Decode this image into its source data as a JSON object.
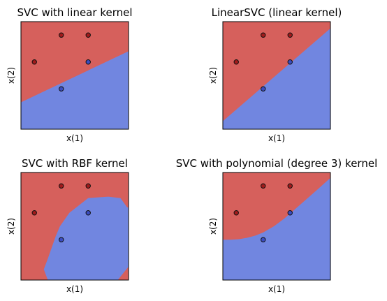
{
  "colors": {
    "class0": "#d6605c",
    "class1": "#7186e0",
    "point_stroke": "#111111"
  },
  "chart_data": [
    {
      "type": "scatter",
      "title": "SVC with linear kernel",
      "xlabel": "x(1)",
      "ylabel": "x(2)",
      "xlim": [
        -0.5,
        3.5
      ],
      "ylim": [
        -0.5,
        3.5
      ],
      "points": [
        {
          "x": 1,
          "y": 3,
          "class": 0
        },
        {
          "x": 2,
          "y": 3,
          "class": 0
        },
        {
          "x": 0,
          "y": 2,
          "class": 0
        },
        {
          "x": 2,
          "y": 2,
          "class": 1
        },
        {
          "x": 1,
          "y": 1,
          "class": 1
        }
      ],
      "boundary": {
        "kind": "line",
        "x": [
          -0.5,
          3.5
        ],
        "y": [
          0.5,
          2.4
        ]
      }
    },
    {
      "type": "scatter",
      "title": "LinearSVC (linear kernel)",
      "xlabel": "x(1)",
      "ylabel": "x(2)",
      "xlim": [
        -0.5,
        3.5
      ],
      "ylim": [
        -0.5,
        3.5
      ],
      "points": [
        {
          "x": 1,
          "y": 3,
          "class": 0
        },
        {
          "x": 2,
          "y": 3,
          "class": 0
        },
        {
          "x": 0,
          "y": 2,
          "class": 0
        },
        {
          "x": 2,
          "y": 2,
          "class": 1
        },
        {
          "x": 1,
          "y": 1,
          "class": 1
        }
      ],
      "boundary": {
        "kind": "line",
        "x": [
          -0.5,
          3.5
        ],
        "y": [
          -0.2,
          3.25
        ]
      }
    },
    {
      "type": "scatter",
      "title": "SVC with RBF kernel",
      "xlabel": "x(1)",
      "ylabel": "x(2)",
      "xlim": [
        -0.5,
        3.5
      ],
      "ylim": [
        -0.5,
        3.5
      ],
      "points": [
        {
          "x": 1,
          "y": 3,
          "class": 0
        },
        {
          "x": 2,
          "y": 3,
          "class": 0
        },
        {
          "x": 0,
          "y": 2,
          "class": 0
        },
        {
          "x": 2,
          "y": 2,
          "class": 1
        },
        {
          "x": 1,
          "y": 1,
          "class": 1
        }
      ],
      "boundary": {
        "kind": "region",
        "x": [
          3.45,
          3.2,
          2.75,
          2.0,
          1.3,
          0.95,
          0.8,
          0.5,
          0.35,
          0.5,
          3.5,
          3.5
        ],
        "y": [
          2.2,
          2.55,
          2.6,
          2.55,
          2.0,
          1.5,
          1.15,
          0.3,
          -0.1,
          -0.5,
          -0.5,
          2.2
        ]
      },
      "corner_region": {
        "x": [
          3.5,
          3.5,
          3.1
        ],
        "y": [
          0.0,
          -0.5,
          -0.5
        ]
      }
    },
    {
      "type": "scatter",
      "title": "SVC with polynomial (degree 3) kernel",
      "xlabel": "x(1)",
      "ylabel": "x(2)",
      "xlim": [
        -0.5,
        3.5
      ],
      "ylim": [
        -0.5,
        3.5
      ],
      "points": [
        {
          "x": 1,
          "y": 3,
          "class": 0
        },
        {
          "x": 2,
          "y": 3,
          "class": 0
        },
        {
          "x": 0,
          "y": 2,
          "class": 0
        },
        {
          "x": 2,
          "y": 2,
          "class": 1
        },
        {
          "x": 1,
          "y": 1,
          "class": 1
        }
      ],
      "boundary": {
        "kind": "curve",
        "x": [
          -0.5,
          -0.2,
          0.1,
          0.4,
          0.7,
          1.0,
          1.4,
          1.8,
          2.2,
          2.6,
          3.0,
          3.5
        ],
        "y": [
          1.0,
          1.0,
          1.02,
          1.07,
          1.15,
          1.27,
          1.5,
          1.8,
          2.15,
          2.5,
          2.85,
          3.3
        ]
      }
    }
  ]
}
